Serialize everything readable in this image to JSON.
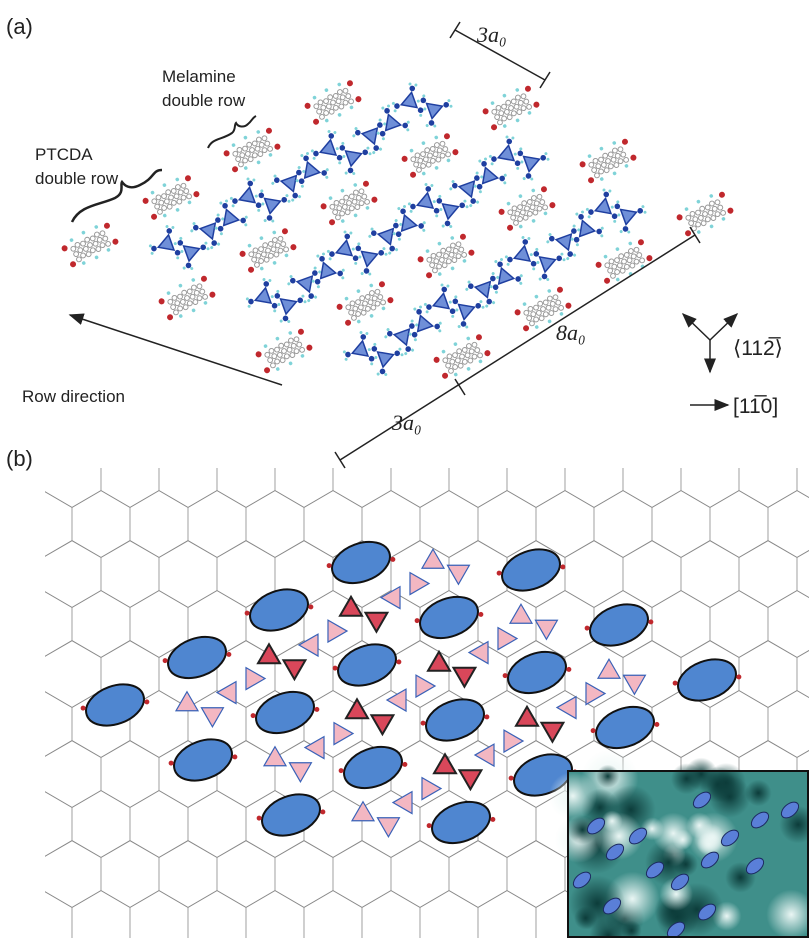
{
  "panel_a": {
    "label": "(a)",
    "top_spacing": "3a₀",
    "melamine_label": [
      "Melamine",
      "double row"
    ],
    "ptcda_label": [
      "PTCDA",
      "double row"
    ],
    "long_spacing": "8a₀",
    "bottom_spacing": "3a₀",
    "row_direction": "Row direction",
    "direction_112": "⟨112̅⟩",
    "direction_110": "[11̅0]"
  },
  "panel_b": {
    "label": "(b)"
  }
}
